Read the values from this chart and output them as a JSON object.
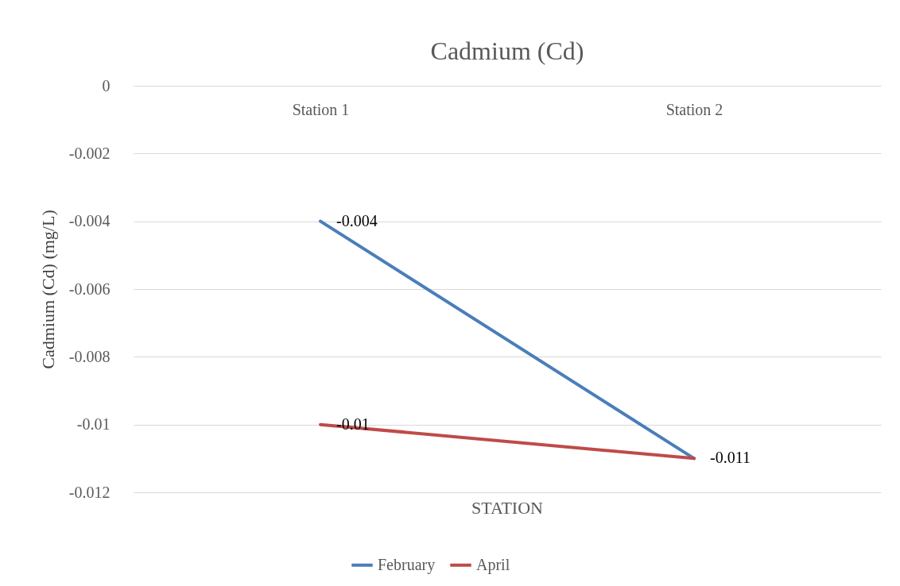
{
  "chart_data": {
    "type": "line",
    "title": "Cadmium (Cd)",
    "xlabel": "STATION",
    "ylabel": "Cadmium (Cd) (mg/L)",
    "categories": [
      "Station 1",
      "Station 2"
    ],
    "series": [
      {
        "name": "February",
        "color": "#4a7ebb",
        "values": [
          -0.004,
          -0.011
        ],
        "value_labels": [
          "-0.004",
          null
        ]
      },
      {
        "name": "April",
        "color": "#be4b48",
        "values": [
          -0.01,
          -0.011
        ],
        "value_labels": [
          "-0.01",
          "-0.011"
        ]
      }
    ],
    "ylim": [
      -0.012,
      0
    ],
    "yticks": [
      0,
      -0.002,
      -0.004,
      -0.006,
      -0.008,
      {
        "value": -0.01,
        "label": "-0.01"
      },
      -0.012
    ],
    "grid": "y",
    "legend": "bottom",
    "marker": "none",
    "line_style": "solid"
  }
}
